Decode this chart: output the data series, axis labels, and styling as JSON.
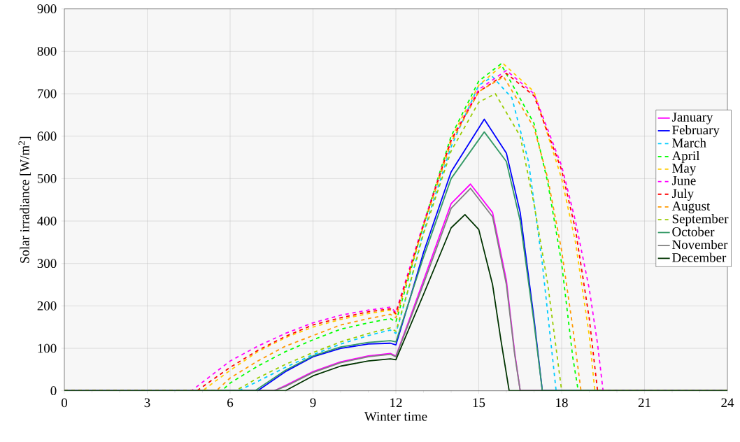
{
  "chart_data": {
    "type": "line",
    "xlabel": "Winter time",
    "ylabel": "Solar irradiance [W/m$^{2}$]",
    "xlim": [
      0,
      24
    ],
    "xticks": [
      0,
      3,
      6,
      9,
      12,
      15,
      18,
      21,
      24
    ],
    "ylim": [
      0,
      900
    ],
    "yticks": [
      0,
      100,
      200,
      300,
      400,
      500,
      600,
      700,
      800,
      900
    ],
    "grid": true,
    "legend": "right",
    "marker": "none",
    "series": [
      {
        "name": "January",
        "color": "#ff00ff",
        "line_style": "solid",
        "x": [
          0,
          7.6,
          8,
          9,
          10,
          11,
          11.8,
          12,
          12.5,
          13,
          14,
          14.7,
          15.5,
          16,
          16.3,
          16.5,
          24
        ],
        "values": [
          0,
          0,
          12,
          45,
          68,
          82,
          88,
          82,
          170,
          260,
          441,
          487,
          420,
          260,
          90,
          0,
          0
        ]
      },
      {
        "name": "February",
        "color": "#0000ff",
        "line_style": "solid",
        "x": [
          0,
          7.0,
          8,
          9,
          10,
          11,
          11.8,
          12,
          12.5,
          13,
          14,
          15.2,
          16,
          16.5,
          17,
          17.3,
          24
        ],
        "values": [
          0,
          0,
          45,
          80,
          100,
          110,
          112,
          108,
          215,
          326,
          516,
          640,
          560,
          420,
          170,
          0,
          0
        ]
      },
      {
        "name": "March",
        "color": "#00ccff",
        "line_style": "dashed",
        "x": [
          0,
          6.3,
          7,
          8,
          9,
          10,
          11,
          11.8,
          12,
          12.5,
          13,
          14,
          15,
          15.5,
          16.2,
          16.8,
          17.3,
          17.6,
          17.8,
          24
        ],
        "values": [
          0,
          0,
          22,
          55,
          85,
          110,
          130,
          143,
          135,
          250,
          375,
          575,
          720,
          740,
          690,
          540,
          300,
          120,
          0,
          0
        ]
      },
      {
        "name": "April",
        "color": "#00ff00",
        "line_style": "dashed",
        "x": [
          0,
          5.7,
          6,
          7,
          8,
          9,
          10,
          11,
          11.8,
          12,
          12.5,
          13,
          14,
          15,
          15.8,
          17,
          17.5,
          18,
          18.4,
          18.6,
          24
        ],
        "values": [
          0,
          0,
          18,
          58,
          92,
          120,
          145,
          160,
          170,
          162,
          275,
          392,
          600,
          730,
          770,
          630,
          490,
          300,
          80,
          0,
          0
        ]
      },
      {
        "name": "May",
        "color": "#ffcc00",
        "line_style": "dashed",
        "x": [
          0,
          5.0,
          6,
          7,
          8,
          9,
          10,
          11,
          11.8,
          12,
          12.5,
          13,
          14,
          15,
          15.9,
          17,
          18,
          18.5,
          19,
          19.2,
          24
        ],
        "values": [
          0,
          0,
          48,
          92,
          125,
          150,
          168,
          182,
          190,
          180,
          285,
          392,
          595,
          720,
          770,
          705,
          500,
          350,
          130,
          0,
          0
        ]
      },
      {
        "name": "June",
        "color": "#ff00ff",
        "line_style": "dashed",
        "x": [
          0,
          4.6,
          5,
          6,
          7,
          8,
          9,
          10,
          11,
          11.8,
          12,
          12.5,
          13,
          14,
          15,
          16,
          17,
          18,
          18.5,
          19,
          19.3,
          19.5,
          24
        ],
        "values": [
          0,
          0,
          20,
          70,
          105,
          135,
          160,
          178,
          190,
          197,
          185,
          290,
          395,
          590,
          710,
          755,
          700,
          530,
          400,
          240,
          110,
          0,
          0
        ]
      },
      {
        "name": "July",
        "color": "#ff0000",
        "line_style": "dashed",
        "x": [
          0,
          4.8,
          6,
          7,
          8,
          9,
          10,
          11,
          11.8,
          12,
          12.5,
          13,
          14,
          15,
          16,
          17,
          18,
          18.5,
          19,
          19.3,
          24
        ],
        "values": [
          0,
          0,
          55,
          95,
          128,
          155,
          172,
          186,
          193,
          182,
          285,
          390,
          590,
          705,
          748,
          695,
          520,
          380,
          170,
          0,
          0
        ]
      },
      {
        "name": "August",
        "color": "#ff9900",
        "line_style": "dashed",
        "x": [
          0,
          5.5,
          6,
          7,
          8,
          9,
          10,
          11,
          11.8,
          12,
          12.5,
          13,
          14,
          15,
          15.9,
          17,
          17.5,
          18,
          18.4,
          18.7,
          24
        ],
        "values": [
          0,
          0,
          30,
          70,
          105,
          130,
          155,
          170,
          180,
          172,
          280,
          388,
          585,
          705,
          740,
          620,
          500,
          330,
          150,
          0,
          0
        ]
      },
      {
        "name": "September",
        "color": "#99cc00",
        "line_style": "dashed",
        "x": [
          0,
          6.2,
          7,
          8,
          9,
          10,
          11,
          11.8,
          12,
          12.5,
          13,
          14,
          15,
          15.6,
          16.5,
          17,
          17.5,
          17.8,
          18.0,
          24
        ],
        "values": [
          0,
          0,
          30,
          62,
          90,
          115,
          135,
          148,
          140,
          250,
          370,
          565,
          680,
          700,
          600,
          440,
          250,
          100,
          0,
          0
        ]
      },
      {
        "name": "October",
        "color": "#339966",
        "line_style": "solid",
        "x": [
          0,
          6.9,
          8,
          9,
          10,
          11,
          11.8,
          12,
          12.5,
          13,
          14,
          15.2,
          16,
          16.5,
          17,
          17.3,
          24
        ],
        "values": [
          0,
          0,
          48,
          82,
          103,
          114,
          118,
          115,
          215,
          315,
          500,
          610,
          540,
          400,
          160,
          0,
          0
        ]
      },
      {
        "name": "November",
        "color": "#808080",
        "line_style": "solid",
        "x": [
          0,
          7.6,
          8,
          9,
          10,
          11,
          11.8,
          12,
          12.5,
          13,
          14,
          14.7,
          15.5,
          16,
          16.3,
          16.5,
          24
        ],
        "values": [
          0,
          0,
          10,
          43,
          66,
          80,
          86,
          80,
          165,
          252,
          430,
          477,
          410,
          250,
          85,
          0,
          0
        ]
      },
      {
        "name": "December",
        "color": "#003300",
        "line_style": "solid",
        "x": [
          0,
          8.0,
          9,
          10,
          11,
          11.8,
          12,
          12.5,
          13,
          14,
          14.5,
          15,
          15.5,
          15.8,
          16.1,
          24
        ],
        "values": [
          0,
          0,
          35,
          58,
          70,
          75,
          73,
          150,
          227,
          384,
          415,
          380,
          250,
          120,
          0,
          0
        ]
      }
    ]
  }
}
